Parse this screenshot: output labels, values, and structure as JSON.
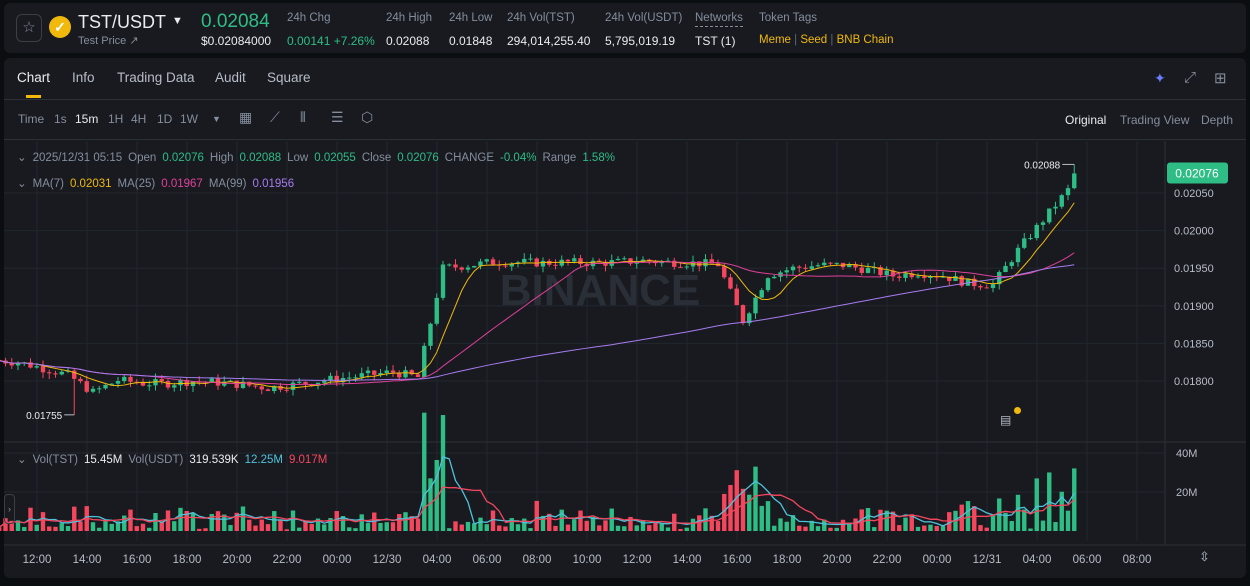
{
  "header": {
    "pair": "TST/USDT",
    "sub_label": "Test Price ↗",
    "price": "0.02084",
    "price_usd": "$0.02084000",
    "stats": [
      {
        "label": "24h Chg",
        "value": "0.00141 +7.26%"
      },
      {
        "label": "24h High",
        "value": "0.02088"
      },
      {
        "label": "24h Low",
        "value": "0.01848"
      },
      {
        "label": "24h Vol(TST)",
        "value": "294,014,255.40"
      },
      {
        "label": "24h Vol(USDT)",
        "value": "5,795,019.19"
      },
      {
        "label": "Networks",
        "value": "TST (1)"
      }
    ],
    "token_tags_label": "Token Tags",
    "token_tags": [
      "Meme",
      "Seed",
      "BNB Chain"
    ]
  },
  "tabs": [
    "Chart",
    "Info",
    "Trading Data",
    "Audit",
    "Square"
  ],
  "toolbar": {
    "intervals": [
      "Time",
      "1s",
      "15m",
      "1H",
      "4H",
      "1D",
      "1W"
    ],
    "active": "15m",
    "views": [
      "Original",
      "Trading View",
      "Depth"
    ],
    "active_view": "Original"
  },
  "legend": {
    "date": "2025/12/31 05:15",
    "open_label": "Open",
    "open": "0.02076",
    "high_label": "High",
    "high": "0.02088",
    "low_label": "Low",
    "low": "0.02055",
    "close_label": "Close",
    "close": "0.02076",
    "change_label": "CHANGE",
    "change": "-0.04%",
    "range_label": "Range",
    "range": "1.58%",
    "ma7_label": "MA(7)",
    "ma7": "0.02031",
    "ma25_label": "MA(25)",
    "ma25": "0.01967",
    "ma99_label": "MA(99)",
    "ma99": "0.01956"
  },
  "vol_legend": {
    "tst_label": "Vol(TST)",
    "tst": "15.45M",
    "usdt_label": "Vol(USDT)",
    "usdt": "319.539K",
    "ma1": "12.25M",
    "ma2": "9.017M"
  },
  "watermark": "BINANCE",
  "colors": {
    "up": "#2ebd85",
    "down": "#f6465d",
    "ma7": "#f0b90b",
    "ma25": "#e0409a",
    "ma99": "#a77cf0",
    "vol_ma1": "#4fc3dc",
    "vol_ma2": "#f6465d"
  },
  "chart_data": {
    "type": "candlestick",
    "interval": "15m",
    "first_hour": "2025/12/29 11:00",
    "hourly_close": [
      0.01825,
      0.01817,
      0.01808,
      0.01785,
      0.01801,
      0.01797,
      0.01797,
      0.018,
      0.01798,
      0.01795,
      0.01791,
      0.01795,
      0.018,
      0.01804,
      0.01808,
      0.01812,
      0.01805,
      0.0195,
      0.01954,
      0.01958,
      0.01958,
      0.01957,
      0.01958,
      0.01957,
      0.01958,
      0.0196,
      0.01958,
      0.01957,
      0.01955,
      0.0188,
      0.01941,
      0.0195,
      0.01954,
      0.01954,
      0.01948,
      0.0194,
      0.01944,
      0.0194,
      0.0193,
      0.01928,
      0.01974,
      0.02014,
      0.02054
    ],
    "last_close": 0.02076,
    "high_mark": "0.02088",
    "low_mark": "0.01755",
    "current_price_tag": "0.02076",
    "y_ticks": [
      "0.02050",
      "0.02000",
      "0.01950",
      "0.01900",
      "0.01850",
      "0.01800"
    ],
    "vol_ticks": [
      "40M",
      "20M"
    ],
    "x_ticks": [
      "12:00",
      "14:00",
      "16:00",
      "18:00",
      "20:00",
      "22:00",
      "00:00",
      "12/30",
      "04:00",
      "06:00",
      "08:00",
      "10:00",
      "12:00",
      "14:00",
      "16:00",
      "18:00",
      "20:00",
      "22:00",
      "00:00",
      "12/31",
      "04:00",
      "06:00",
      "08:00"
    ]
  }
}
